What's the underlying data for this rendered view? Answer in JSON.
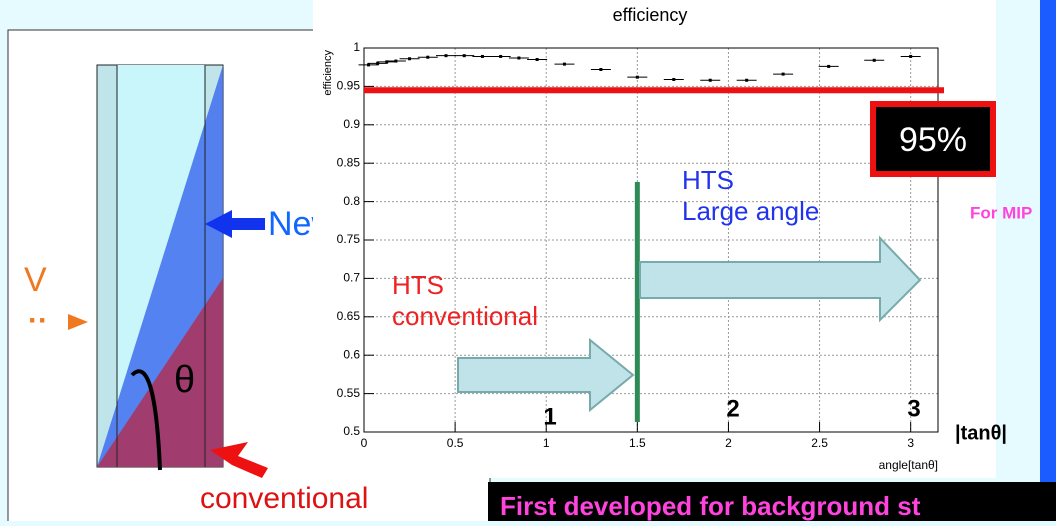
{
  "chart_data": {
    "type": "scatter",
    "title": "efficiency",
    "y_label": "efficiency",
    "x_label": "angle[tanθ]",
    "x": [
      0.025,
      0.075,
      0.125,
      0.175,
      0.25,
      0.35,
      0.45,
      0.55,
      0.65,
      0.75,
      0.85,
      0.95,
      1.1,
      1.3,
      1.5,
      1.7,
      1.9,
      2.1,
      2.3,
      2.55,
      2.8,
      3.0
    ],
    "values": [
      0.978,
      0.98,
      0.982,
      0.983,
      0.986,
      0.988,
      0.99,
      0.99,
      0.989,
      0.989,
      0.987,
      0.985,
      0.979,
      0.972,
      0.962,
      0.959,
      0.958,
      0.958,
      0.966,
      0.976,
      0.984,
      0.989
    ],
    "color": "#000000",
    "xlim": [
      0,
      3.15
    ],
    "ylim": [
      0.5,
      1.0
    ],
    "xticks": [
      0,
      0.5,
      1,
      1.5,
      2,
      2.5,
      3
    ],
    "yticks": [
      0.5,
      0.55,
      0.6,
      0.65,
      0.7,
      0.75,
      0.8,
      0.85,
      0.9,
      0.95,
      1
    ],
    "grid": true,
    "threshold": {
      "value": 0.945,
      "color": "#ee1111"
    },
    "divider": {
      "value": 1.5,
      "color": "#2e8b57"
    },
    "annotations": {
      "box": "95%",
      "mip": "For MIP",
      "conventional": "HTS\nconventional",
      "large": "HTS\nLarge angle",
      "region1": "1",
      "region2": "2",
      "region3": "3",
      "axis_name": "|tanθ|"
    }
  },
  "diagram": {
    "new": "New",
    "v": "V",
    "theta": "θ",
    "conventional": "conventional"
  },
  "footer": "First  developed for background st"
}
